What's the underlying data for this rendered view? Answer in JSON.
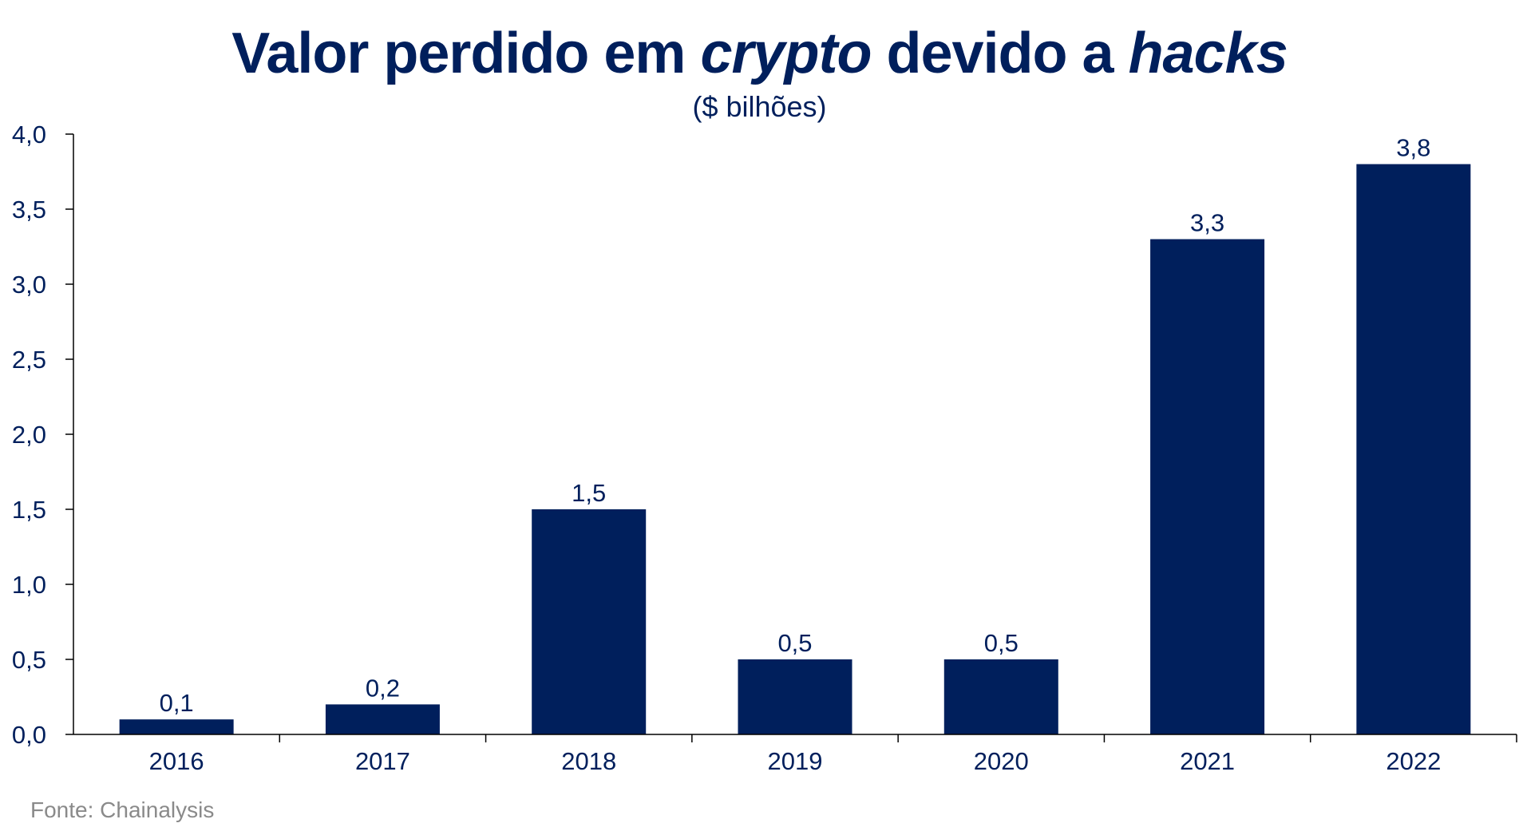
{
  "title": {
    "part1": "Valor perdido em ",
    "part2": "crypto",
    "part3": " devido a ",
    "part4": "hacks"
  },
  "subtitle": "($ bilhões)",
  "source": "Fonte: Chainalysis",
  "colors": {
    "bar": "#001f5c",
    "text": "#001f5c",
    "axis": "#000000",
    "source": "#8a8a8a"
  },
  "chart_data": {
    "type": "bar",
    "title": "Valor perdido em crypto devido a hacks",
    "subtitle": "($ bilhões)",
    "categories": [
      "2016",
      "2017",
      "2018",
      "2019",
      "2020",
      "2021",
      "2022"
    ],
    "values": [
      0.1,
      0.2,
      1.5,
      0.5,
      0.5,
      3.3,
      3.8
    ],
    "value_labels": [
      "0,1",
      "0,2",
      "1,5",
      "0,5",
      "0,5",
      "3,3",
      "3,8"
    ],
    "yticks": [
      0,
      0.5,
      1,
      1.5,
      2,
      2.5,
      3,
      3.5,
      4
    ],
    "ytick_labels": [
      "0,0",
      "0,5",
      "1,0",
      "1,5",
      "2,0",
      "2,5",
      "3,0",
      "3,5",
      "4,0"
    ],
    "ylim": [
      0,
      4
    ],
    "xlabel": "",
    "ylabel": "",
    "grid": false,
    "legend": "none"
  }
}
